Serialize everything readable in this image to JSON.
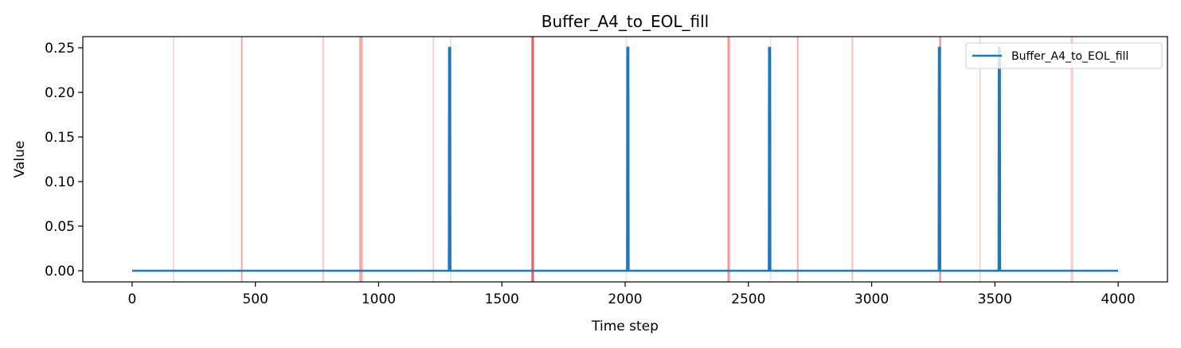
{
  "chart_data": {
    "type": "line",
    "title": "Buffer_A4_to_EOL_fill",
    "xlabel": "Time step",
    "ylabel": "Value",
    "xlim": [
      -200,
      4200
    ],
    "ylim": [
      -0.0125,
      0.2625
    ],
    "x_ticks": [
      0,
      500,
      1000,
      1500,
      2000,
      2500,
      3000,
      3500,
      4000
    ],
    "x_tick_labels": [
      "0",
      "500",
      "1000",
      "1500",
      "2000",
      "2500",
      "3000",
      "3500",
      "4000"
    ],
    "y_ticks": [
      0.0,
      0.05,
      0.1,
      0.15,
      0.2,
      0.25
    ],
    "y_tick_labels": [
      "0.00",
      "0.05",
      "0.10",
      "0.15",
      "0.20",
      "0.25"
    ],
    "grid": false,
    "legend_position": "top-right",
    "series": [
      {
        "name": "Buffer_A4_to_EOL_fill",
        "color": "#1f77b4",
        "x": [
          0,
          1285,
          1286,
          1290,
          1291,
          2008,
          2009,
          2013,
          2014,
          2583,
          2584,
          2588,
          2589,
          3272,
          3273,
          3277,
          3278,
          3515,
          3516,
          3520,
          3521,
          4000
        ],
        "y": [
          0,
          0,
          0.25,
          0.25,
          0,
          0,
          0.25,
          0.25,
          0,
          0,
          0.25,
          0.25,
          0,
          0,
          0.25,
          0.25,
          0,
          0,
          0.25,
          0.25,
          0,
          0
        ]
      }
    ],
    "highlight_lines": [
      {
        "x": 168,
        "color": "#f08080",
        "opacity": 0.3
      },
      {
        "x": 445,
        "color": "#f08080",
        "opacity": 0.7
      },
      {
        "x": 775,
        "color": "#f08080",
        "opacity": 0.45
      },
      {
        "x": 925,
        "color": "#f08080",
        "opacity": 0.75
      },
      {
        "x": 932,
        "color": "#f08080",
        "opacity": 0.75
      },
      {
        "x": 1222,
        "color": "#f08080",
        "opacity": 0.35
      },
      {
        "x": 1292,
        "color": "#c8e0c8",
        "opacity": 0.6
      },
      {
        "x": 1623,
        "color": "#e85050",
        "opacity": 0.85
      },
      {
        "x": 1627,
        "color": "#e85050",
        "opacity": 0.85
      },
      {
        "x": 2005,
        "color": "#c8e0c8",
        "opacity": 0.5
      },
      {
        "x": 2418,
        "color": "#f08080",
        "opacity": 0.75
      },
      {
        "x": 2422,
        "color": "#f08080",
        "opacity": 0.75
      },
      {
        "x": 2590,
        "color": "#c8e0c8",
        "opacity": 0.5
      },
      {
        "x": 2700,
        "color": "#f08080",
        "opacity": 0.65
      },
      {
        "x": 2922,
        "color": "#f08080",
        "opacity": 0.5
      },
      {
        "x": 3278,
        "color": "#e85050",
        "opacity": 0.7
      },
      {
        "x": 3440,
        "color": "#f4b0a0",
        "opacity": 0.5
      },
      {
        "x": 3810,
        "color": "#f08080",
        "opacity": 0.35
      },
      {
        "x": 3815,
        "color": "#f08080",
        "opacity": 0.35
      }
    ]
  }
}
